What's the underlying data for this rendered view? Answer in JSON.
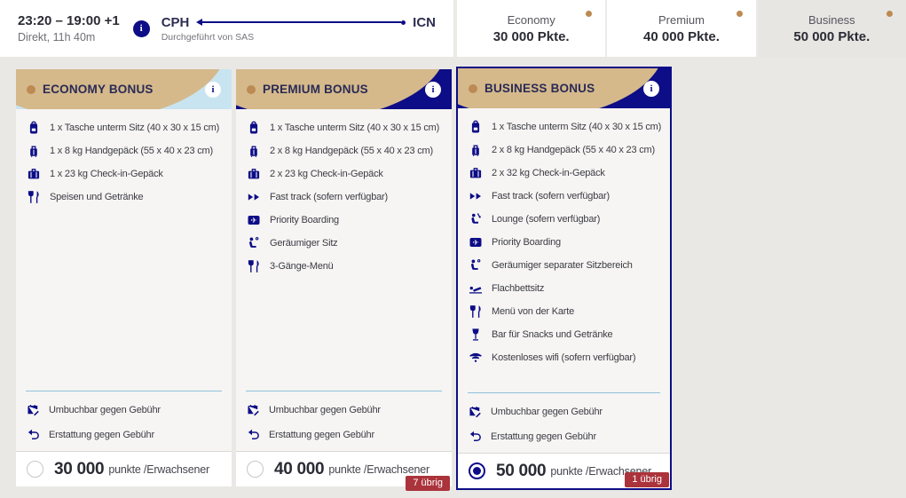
{
  "colors": {
    "navy": "#0d0d87",
    "tan": "#d5b98b",
    "lightblue": "#c9e4f1",
    "gold": "#bc8a52",
    "red": "#ab333b"
  },
  "flight": {
    "times": "23:20 – 19:00 +1",
    "details": "Direkt, 11h 40m",
    "origin": "CPH",
    "destination": "ICN",
    "operated_by": "Durchgeführt von SAS"
  },
  "tabs": [
    {
      "label": "Economy",
      "price": "30 000 Pkte.",
      "selected": false
    },
    {
      "label": "Premium",
      "price": "40 000 Pkte.",
      "selected": false
    },
    {
      "label": "Business",
      "price": "50 000 Pkte.",
      "selected": true
    }
  ],
  "cards": [
    {
      "title": "ECONOMY BONUS",
      "theme": "lightblue",
      "selected": false,
      "features": [
        {
          "icon": "underseat-bag-icon",
          "text": "1 x Tasche unterm Sitz (40 x 30 x 15 cm)"
        },
        {
          "icon": "carryon-bag-icon",
          "text": "1 x 8 kg Handgepäck (55 x 40 x 23 cm)"
        },
        {
          "icon": "checked-bag-icon",
          "text": "1 x 23 kg Check-in-Gepäck"
        },
        {
          "icon": "meal-icon",
          "text": "Speisen und Getränke"
        }
      ],
      "policies": [
        {
          "icon": "rebook-icon",
          "text": "Umbuchbar gegen Gebühr"
        },
        {
          "icon": "refund-icon",
          "text": "Erstattung gegen Gebühr"
        }
      ],
      "price": "30 000",
      "price_unit": "punkte /Erwachsener",
      "badge": null
    },
    {
      "title": "PREMIUM BONUS",
      "theme": "navy",
      "selected": false,
      "features": [
        {
          "icon": "underseat-bag-icon",
          "text": "1 x Tasche unterm Sitz (40 x 30 x 15 cm)"
        },
        {
          "icon": "carryon-bag-icon",
          "text": "2 x 8 kg Handgepäck (55 x 40 x 23 cm)"
        },
        {
          "icon": "checked-bag-icon",
          "text": "2 x 23 kg Check-in-Gepäck"
        },
        {
          "icon": "fast-track-icon",
          "text": "Fast track (sofern verfügbar)"
        },
        {
          "icon": "priority-boarding-icon",
          "text": "Priority Boarding"
        },
        {
          "icon": "seat-icon",
          "text": "Geräumiger Sitz"
        },
        {
          "icon": "meal-icon",
          "text": "3-Gänge-Menü"
        }
      ],
      "policies": [
        {
          "icon": "rebook-icon",
          "text": "Umbuchbar gegen Gebühr"
        },
        {
          "icon": "refund-icon",
          "text": "Erstattung gegen Gebühr"
        }
      ],
      "price": "40 000",
      "price_unit": "punkte /Erwachsener",
      "badge": "7 übrig"
    },
    {
      "title": "BUSINESS BONUS",
      "theme": "navy",
      "selected": true,
      "features": [
        {
          "icon": "underseat-bag-icon",
          "text": "1 x Tasche unterm Sitz (40 x 30 x 15 cm)"
        },
        {
          "icon": "carryon-bag-icon",
          "text": "2 x 8 kg Handgepäck (55 x 40 x 23 cm)"
        },
        {
          "icon": "checked-bag-icon",
          "text": "2 x 32 kg Check-in-Gepäck"
        },
        {
          "icon": "fast-track-icon",
          "text": "Fast track (sofern verfügbar)"
        },
        {
          "icon": "lounge-icon",
          "text": "Lounge (sofern verfügbar)"
        },
        {
          "icon": "priority-boarding-icon",
          "text": "Priority Boarding"
        },
        {
          "icon": "seat-icon",
          "text": "Geräumiger separater Sitzbereich"
        },
        {
          "icon": "flat-bed-icon",
          "text": "Flachbettsitz"
        },
        {
          "icon": "meal-icon",
          "text": "Menü von der Karte"
        },
        {
          "icon": "bar-icon",
          "text": "Bar für Snacks und Getränke"
        },
        {
          "icon": "wifi-icon",
          "text": "Kostenloses wifi (sofern verfügbar)"
        }
      ],
      "policies": [
        {
          "icon": "rebook-icon",
          "text": "Umbuchbar gegen Gebühr"
        },
        {
          "icon": "refund-icon",
          "text": "Erstattung gegen Gebühr"
        }
      ],
      "price": "50 000",
      "price_unit": "punkte /Erwachsener",
      "badge": "1 übrig"
    }
  ]
}
